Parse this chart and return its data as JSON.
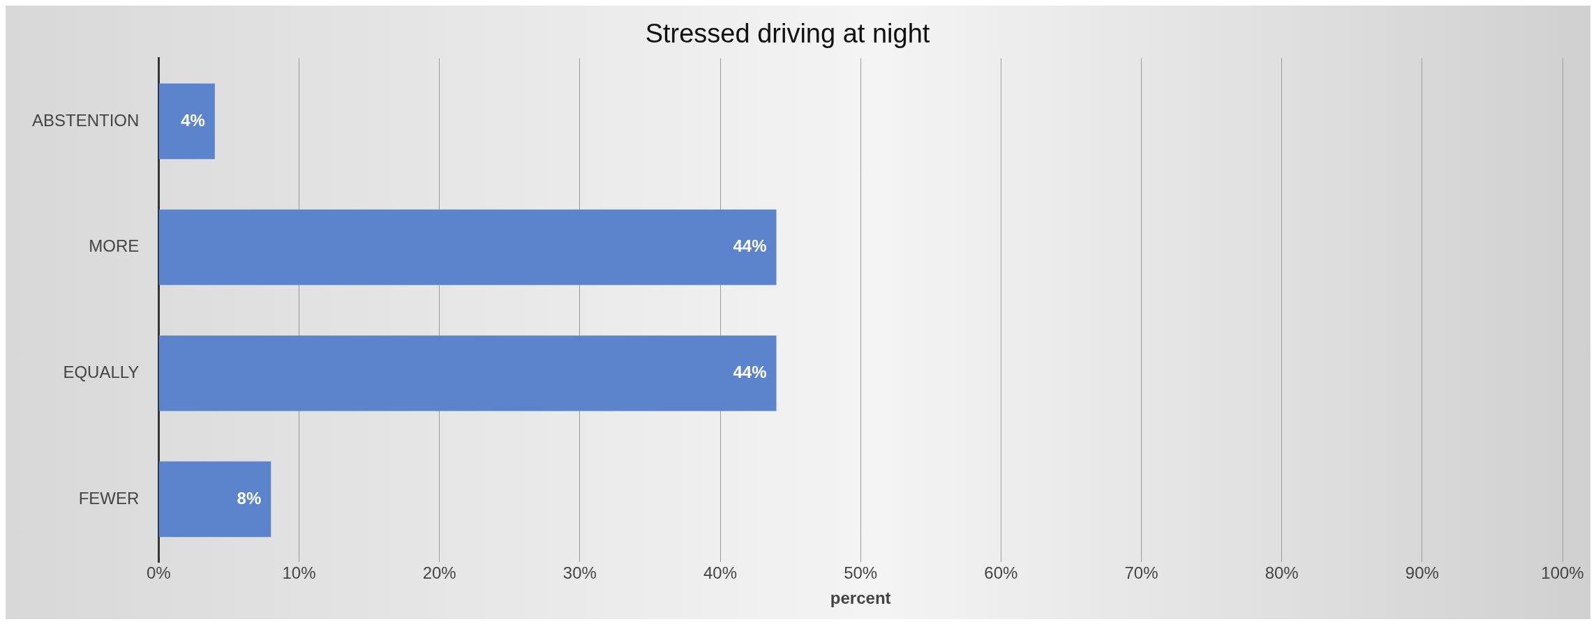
{
  "chart_data": {
    "type": "bar",
    "orientation": "horizontal",
    "title": "Stressed driving at night",
    "xlabel": "percent",
    "categories": [
      "ABSTENTION",
      "MORE",
      "EQUALLY",
      "FEWER"
    ],
    "values": [
      4,
      44,
      44,
      8
    ],
    "color": "#5b84cc",
    "value_labels": [
      "4%",
      "44%",
      "44%",
      "8%"
    ],
    "xlim": [
      0,
      100
    ],
    "xticks": [
      {
        "value": 0,
        "label": "0%"
      },
      {
        "value": 10,
        "label": "10%"
      },
      {
        "value": 20,
        "label": "20%"
      },
      {
        "value": 30,
        "label": "30%"
      },
      {
        "value": 40,
        "label": "40%"
      },
      {
        "value": 50,
        "label": "50%"
      },
      {
        "value": 60,
        "label": "60%"
      },
      {
        "value": 70,
        "label": "70%"
      },
      {
        "value": 80,
        "label": "80%"
      },
      {
        "value": 90,
        "label": "90%"
      },
      {
        "value": 100,
        "label": "100%"
      }
    ],
    "grid": "x",
    "legend": false
  }
}
